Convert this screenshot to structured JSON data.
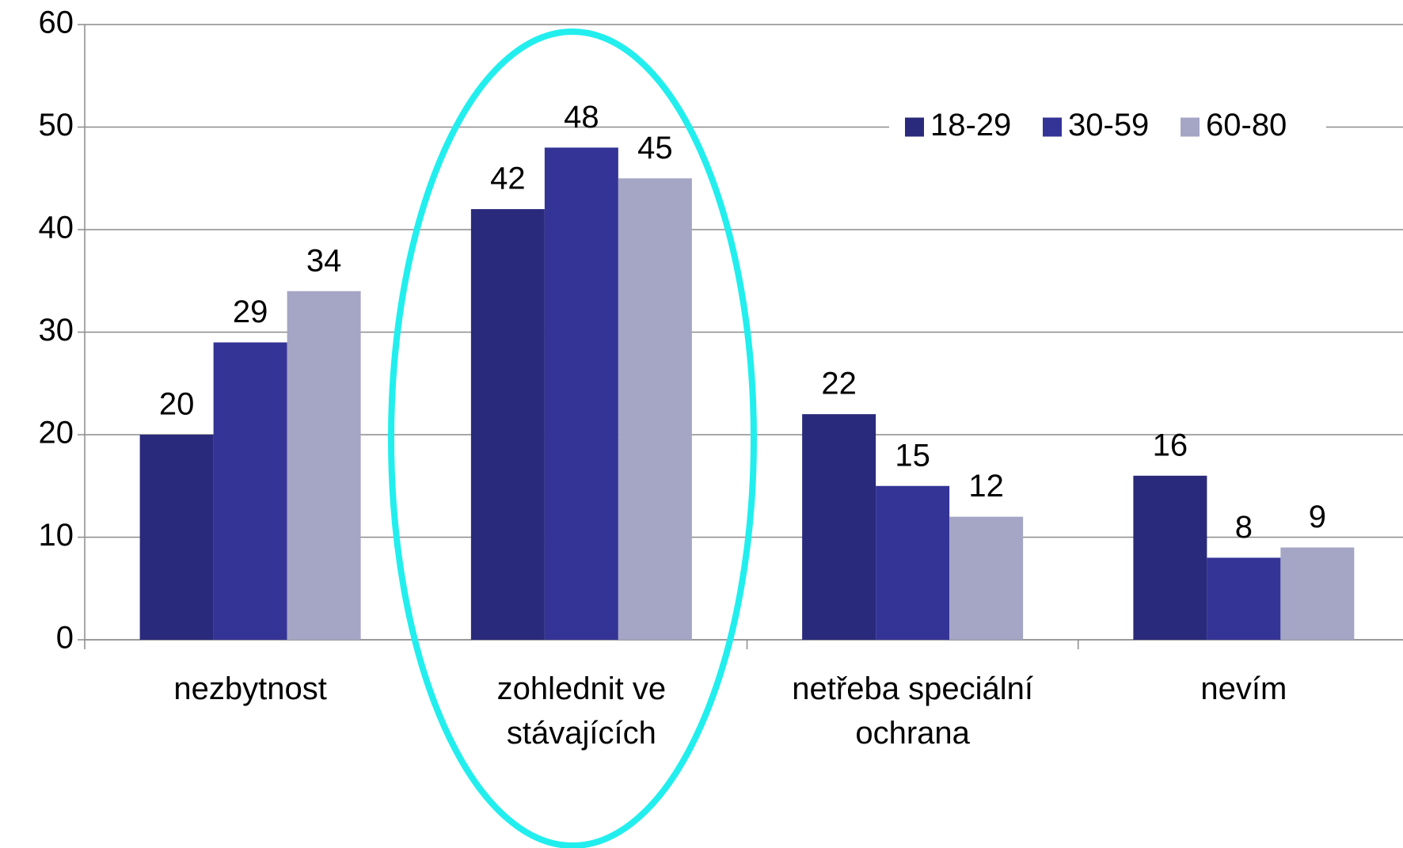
{
  "chart_data": {
    "type": "bar",
    "categories": [
      "nezbytnost",
      "zohlednit ve stávajících",
      "netřeba speciální ochrana",
      "nevím"
    ],
    "series": [
      {
        "name": "18-29",
        "color": "#2a2a7c",
        "values": [
          20,
          42,
          22,
          16
        ]
      },
      {
        "name": "30-59",
        "color": "#343496",
        "values": [
          29,
          48,
          15,
          8
        ]
      },
      {
        "name": "60-80",
        "color": "#a5a5c5",
        "values": [
          34,
          45,
          12,
          9
        ]
      }
    ],
    "ylim": [
      0,
      60
    ],
    "yticks": [
      0,
      10,
      20,
      30,
      40,
      50,
      60
    ],
    "grid": true,
    "legend": "top-right"
  }
}
